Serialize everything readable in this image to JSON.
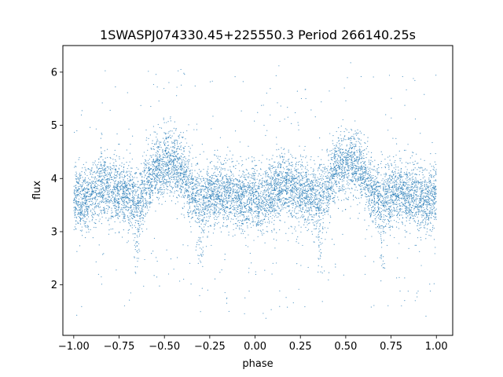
{
  "chart_data": {
    "type": "scatter",
    "title": "1SWASPJ074330.45+225550.3 Period 266140.25s",
    "xlabel": "phase",
    "ylabel": "flux",
    "xlim": [
      -1.06,
      1.09
    ],
    "ylim": [
      1.05,
      6.5
    ],
    "xticks": [
      -1.0,
      -0.75,
      -0.5,
      -0.25,
      0.0,
      0.25,
      0.5,
      0.75,
      1.0
    ],
    "xtick_labels": [
      "−1.00",
      "−0.75",
      "−0.50",
      "−0.25",
      "0.00",
      "0.25",
      "0.50",
      "0.75",
      "1.00"
    ],
    "yticks": [
      2,
      3,
      4,
      5,
      6
    ],
    "ytick_labels": [
      "2",
      "3",
      "4",
      "5",
      "6"
    ],
    "grid": false,
    "point_color": "#1f77b4",
    "trend_phase": [
      -1.0,
      -0.95,
      -0.9,
      -0.85,
      -0.8,
      -0.75,
      -0.7,
      -0.65,
      -0.6,
      -0.55,
      -0.5,
      -0.45,
      -0.4,
      -0.35,
      -0.3,
      -0.25,
      -0.2,
      -0.15,
      -0.1,
      -0.05,
      0.0,
      0.05,
      0.1,
      0.15,
      0.2,
      0.25,
      0.3,
      0.35,
      0.4,
      0.45,
      0.5,
      0.55,
      0.6,
      0.65,
      0.7,
      0.75,
      0.8,
      0.85,
      0.9,
      0.95,
      1.0
    ],
    "trend_flux": [
      3.7,
      3.6,
      3.75,
      3.9,
      3.8,
      3.75,
      3.7,
      3.6,
      3.8,
      4.2,
      4.3,
      4.3,
      4.1,
      3.75,
      3.6,
      3.7,
      3.75,
      3.7,
      3.65,
      3.6,
      3.7,
      3.6,
      3.75,
      3.9,
      3.8,
      3.75,
      3.7,
      3.6,
      3.8,
      4.2,
      4.3,
      4.3,
      4.1,
      3.75,
      3.6,
      3.7,
      3.75,
      3.7,
      3.65,
      3.6,
      3.7
    ],
    "eclipse_dips": [
      {
        "phase": -0.65,
        "min_flux": 2.2
      },
      {
        "phase": -0.3,
        "min_flux": 2.3
      },
      {
        "phase": 0.02,
        "min_flux": 2.9
      },
      {
        "phase": 0.36,
        "min_flux": 2.2
      },
      {
        "phase": 0.7,
        "min_flux": 2.3
      }
    ],
    "n_points": 9000
  }
}
